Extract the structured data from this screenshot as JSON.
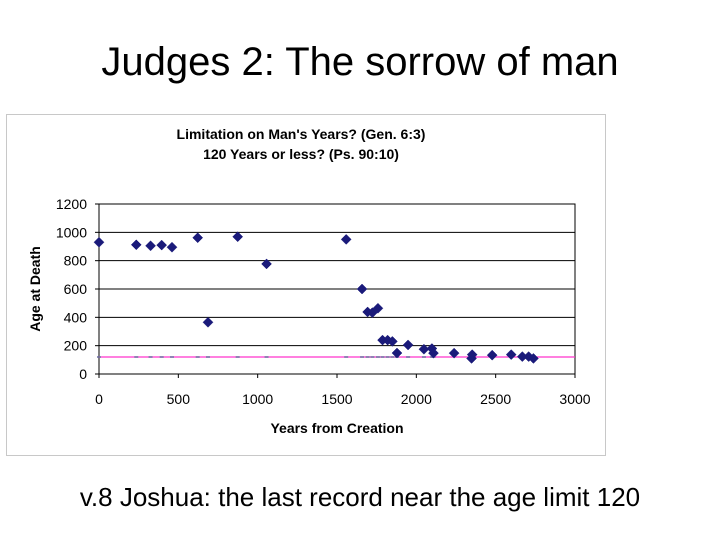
{
  "slide": {
    "title": "Judges 2: The sorrow of man",
    "caption": "v.8 Joshua: the last record near the age limit 120"
  },
  "chart_data": {
    "type": "scatter",
    "title_lines": [
      "Limitation on Man's Years? (Gen. 6:3)",
      "120 Years or less? (Ps. 90:10)"
    ],
    "xlabel": "Years from Creation",
    "ylabel": "Age at Death",
    "xlim": [
      0,
      3000
    ],
    "ylim": [
      0,
      1200
    ],
    "xticks": [
      0,
      500,
      1000,
      1500,
      2000,
      2500,
      3000
    ],
    "yticks": [
      0,
      200,
      400,
      600,
      800,
      1000,
      1200
    ],
    "grid": "horizontal",
    "legend": "none",
    "series": [
      {
        "marker": "diamond",
        "color": "#1a1a7a",
        "points": [
          [
            0,
            930
          ],
          [
            235,
            912
          ],
          [
            325,
            905
          ],
          [
            395,
            910
          ],
          [
            460,
            895
          ],
          [
            622,
            962
          ],
          [
            687,
            365
          ],
          [
            874,
            969
          ],
          [
            1056,
            777
          ],
          [
            1558,
            950
          ],
          [
            1658,
            600
          ],
          [
            1693,
            438
          ],
          [
            1723,
            433
          ],
          [
            1758,
            464
          ],
          [
            1787,
            239
          ],
          [
            1819,
            239
          ],
          [
            1849,
            230
          ],
          [
            1878,
            148
          ],
          [
            1948,
            205
          ],
          [
            2048,
            175
          ],
          [
            2098,
            180
          ],
          [
            2108,
            147
          ],
          [
            2238,
            147
          ],
          [
            2348,
            110
          ],
          [
            2352,
            137
          ],
          [
            2478,
            133
          ],
          [
            2598,
            137
          ],
          [
            2668,
            123
          ],
          [
            2708,
            123
          ],
          [
            2738,
            110
          ]
        ]
      }
    ],
    "reference_line": {
      "y": 120,
      "color": "#ff33cc"
    },
    "baseline_ticks_x": [
      0,
      235,
      325,
      395,
      460,
      622,
      687,
      874,
      1056,
      1558,
      1658,
      1693,
      1723,
      1758,
      1787,
      1819,
      1849,
      1878,
      1948,
      2048,
      2098,
      2108
    ]
  }
}
